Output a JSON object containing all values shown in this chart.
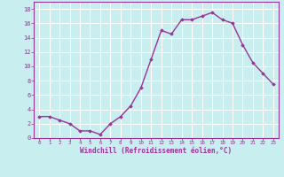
{
  "x": [
    0,
    1,
    2,
    3,
    4,
    5,
    6,
    7,
    8,
    9,
    10,
    11,
    12,
    13,
    14,
    15,
    16,
    17,
    18,
    19,
    20,
    21,
    22,
    23
  ],
  "y": [
    3,
    3,
    2.5,
    2,
    1,
    1,
    0.5,
    2,
    3,
    4.5,
    7,
    11,
    15,
    14.5,
    16.5,
    16.5,
    17,
    17.5,
    16.5,
    16,
    13,
    10.5,
    9,
    7.5
  ],
  "line_color": "#993399",
  "marker": "D",
  "marker_size": 1.8,
  "background_color": "#c8eef0",
  "grid_color": "#ffffff",
  "xlabel": "Windchill (Refroidissement éolien,°C)",
  "xlabel_color": "#993399",
  "tick_color": "#993399",
  "ylim": [
    0,
    19
  ],
  "xlim": [
    -0.5,
    23.5
  ],
  "yticks": [
    0,
    2,
    4,
    6,
    8,
    10,
    12,
    14,
    16,
    18
  ],
  "xticks": [
    0,
    1,
    2,
    3,
    4,
    5,
    6,
    7,
    8,
    9,
    10,
    11,
    12,
    13,
    14,
    15,
    16,
    17,
    18,
    19,
    20,
    21,
    22,
    23
  ],
  "xtick_labels": [
    "0",
    "1",
    "2",
    "3",
    "4",
    "5",
    "6",
    "7",
    "8",
    "9",
    "10",
    "11",
    "12",
    "13",
    "14",
    "15",
    "16",
    "17",
    "18",
    "19",
    "20",
    "21",
    "22",
    "23"
  ],
  "line_width": 1.0
}
